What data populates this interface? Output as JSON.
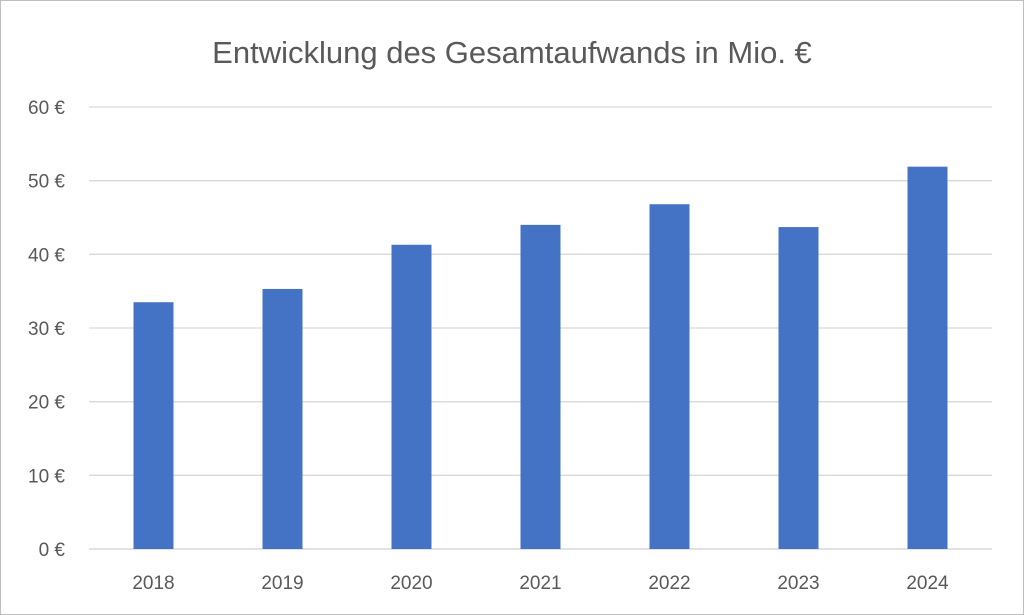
{
  "chart_data": {
    "type": "bar",
    "title": "Entwicklung des Gesamtaufwands in Mio. €",
    "categories": [
      "2018",
      "2019",
      "2020",
      "2021",
      "2022",
      "2023",
      "2024"
    ],
    "values": [
      33.5,
      35.3,
      41.3,
      44.0,
      46.8,
      43.7,
      51.9
    ],
    "ylim": [
      0,
      60
    ],
    "yticks": [
      0,
      10,
      20,
      30,
      40,
      50,
      60
    ],
    "ytick_labels": [
      "0 €",
      "10 €",
      "20 €",
      "30 €",
      "40 €",
      "50 €",
      "60 €"
    ],
    "grid": true,
    "legend": "none",
    "bar_color": "#4472c4"
  }
}
